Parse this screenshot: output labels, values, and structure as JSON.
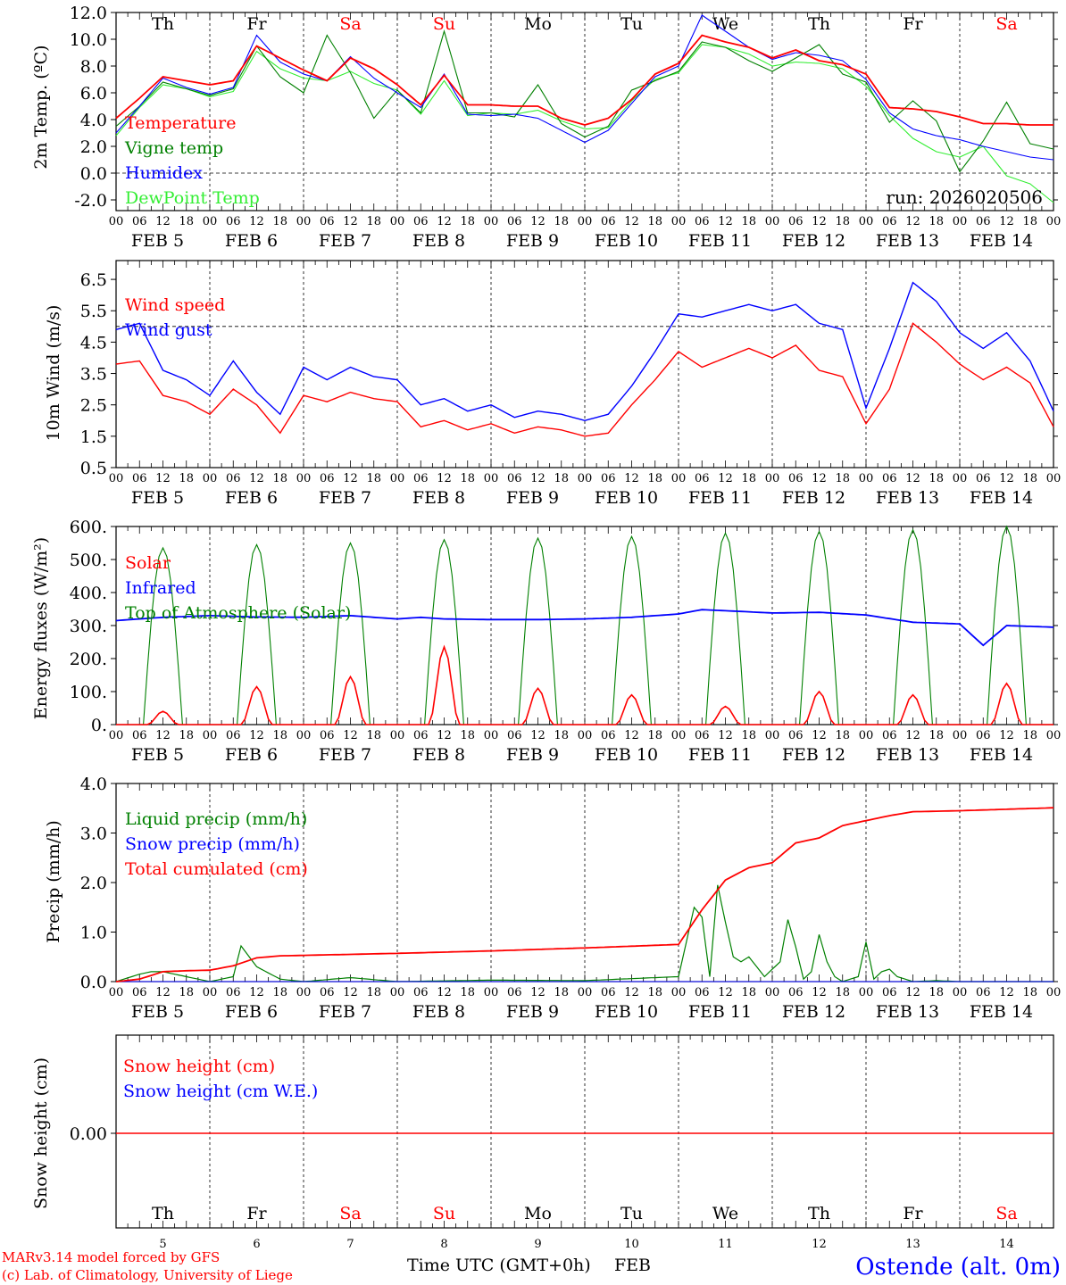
{
  "colors": {
    "red": "#ff0000",
    "green": "#008000",
    "blue": "#0000ff",
    "lightgreen": "#33ee33",
    "black": "#000000"
  },
  "days": {
    "names": [
      "Th",
      "Fr",
      "Sa",
      "Su",
      "Mo",
      "Tu",
      "We",
      "Th",
      "Fr",
      "Sa"
    ],
    "weekend": [
      false,
      false,
      true,
      true,
      false,
      false,
      false,
      false,
      false,
      true
    ],
    "date_labels": [
      "FEB  5",
      "FEB  6",
      "FEB  7",
      "FEB  8",
      "FEB  9",
      "FEB 10",
      "FEB 11",
      "FEB 12",
      "FEB 13",
      "FEB 14"
    ],
    "day_numbers": [
      "5",
      "6",
      "7",
      "8",
      "9",
      "10",
      "11",
      "12",
      "13",
      "14"
    ],
    "hour_ticks": [
      "00",
      "06",
      "12",
      "18"
    ],
    "final_tick": "00"
  },
  "footer": {
    "credit_line1": "MARv3.14 model forced by GFS",
    "credit_line2": "(c) Lab. of Climatology, University of Liege",
    "axis_title": "Time UTC (GMT+0h)",
    "month": "FEB",
    "station": "Ostende (alt. 0m)"
  },
  "chart_data": [
    {
      "type": "line",
      "title": "2m Temp. (ºC)",
      "ylabel": "2m Temp. (ºC)",
      "ylim": [
        -2.8,
        12.0
      ],
      "yticks": [
        -2.0,
        0.0,
        2.0,
        4.0,
        6.0,
        8.0,
        10.0,
        12.0
      ],
      "ytick_labels": [
        "-2.0",
        "0.0",
        "2.0",
        "4.0",
        "6.0",
        "8.0",
        "10.0",
        "12.0"
      ],
      "reference_line": 0.0,
      "run_label": "run: 2026020506",
      "x_hours": [
        0,
        6,
        12,
        18,
        24,
        30,
        36,
        42,
        48,
        54,
        60,
        66,
        72,
        78,
        84,
        90,
        96,
        102,
        108,
        114,
        120,
        126,
        132,
        138,
        144,
        150,
        156,
        162,
        168,
        174,
        180,
        186,
        192,
        198,
        204,
        210,
        216,
        222,
        228,
        234,
        240
      ],
      "series": [
        {
          "name": "Temperature",
          "color": "#ff0000",
          "values": [
            4.1,
            5.6,
            7.2,
            6.9,
            6.6,
            6.9,
            9.5,
            8.6,
            7.7,
            6.9,
            8.6,
            7.8,
            6.6,
            5.1,
            7.3,
            5.1,
            5.1,
            5.0,
            5.0,
            4.1,
            3.6,
            4.1,
            5.5,
            7.4,
            8.2,
            10.3,
            9.8,
            9.4,
            8.6,
            9.2,
            8.4,
            8.1,
            7.4,
            4.9,
            4.8,
            4.6,
            4.2,
            3.7,
            3.7,
            3.6,
            3.6
          ]
        },
        {
          "name": "Vigne temp",
          "color": "#008000",
          "values": [
            3.5,
            5.0,
            6.8,
            6.3,
            5.8,
            6.3,
            9.5,
            7.2,
            6.0,
            10.3,
            7.5,
            4.1,
            6.2,
            4.5,
            10.6,
            4.5,
            4.5,
            4.2,
            6.6,
            3.7,
            2.7,
            3.5,
            6.2,
            6.9,
            7.6,
            9.8,
            9.4,
            8.4,
            7.6,
            8.6,
            9.6,
            7.4,
            6.8,
            3.8,
            5.4,
            3.9,
            0.1,
            2.4,
            5.3,
            2.2,
            1.8
          ]
        },
        {
          "name": "Humidex",
          "color": "#0000ff",
          "values": [
            3.0,
            5.0,
            7.1,
            6.4,
            5.9,
            6.4,
            10.3,
            8.3,
            7.4,
            6.9,
            8.7,
            7.1,
            6.0,
            4.9,
            7.4,
            4.4,
            4.3,
            4.4,
            4.1,
            3.2,
            2.3,
            3.2,
            5.2,
            7.2,
            8.0,
            11.8,
            10.6,
            9.4,
            8.5,
            9.0,
            8.8,
            8.4,
            7.0,
            4.5,
            3.3,
            2.8,
            2.5,
            2.0,
            1.6,
            1.2,
            1.0
          ]
        },
        {
          "name": "DewPoint Temp",
          "color": "#33ee33",
          "values": [
            2.8,
            4.9,
            6.6,
            6.3,
            5.7,
            6.1,
            9.1,
            7.8,
            7.1,
            6.9,
            7.6,
            6.7,
            6.2,
            4.4,
            6.9,
            4.3,
            4.5,
            4.4,
            4.7,
            3.9,
            3.3,
            3.4,
            5.4,
            7.0,
            7.5,
            9.6,
            9.4,
            8.9,
            8.0,
            8.3,
            8.2,
            7.8,
            6.5,
            4.3,
            2.6,
            1.6,
            1.2,
            2.0,
            -0.2,
            -0.8,
            -2.2
          ]
        }
      ]
    },
    {
      "type": "line",
      "title": "10m Wind (m/s)",
      "ylabel": "10m Wind (m/s)",
      "ylim": [
        0.5,
        7.1
      ],
      "yticks": [
        0.5,
        1.5,
        2.5,
        3.5,
        4.5,
        5.5,
        6.5
      ],
      "ytick_labels": [
        "0.5",
        "1.5",
        "2.5",
        "3.5",
        "4.5",
        "5.5",
        "6.5"
      ],
      "reference_line": 5.0,
      "x_hours": [
        0,
        6,
        12,
        18,
        24,
        30,
        36,
        42,
        48,
        54,
        60,
        66,
        72,
        78,
        84,
        90,
        96,
        102,
        108,
        114,
        120,
        126,
        132,
        138,
        144,
        150,
        156,
        162,
        168,
        174,
        180,
        186,
        192,
        198,
        204,
        210,
        216,
        222,
        228,
        234,
        240
      ],
      "series": [
        {
          "name": "Wind speed",
          "color": "#ff0000",
          "values": [
            3.8,
            3.9,
            2.8,
            2.6,
            2.2,
            3.0,
            2.5,
            1.6,
            2.8,
            2.6,
            2.9,
            2.7,
            2.6,
            1.8,
            2.0,
            1.7,
            1.9,
            1.6,
            1.8,
            1.7,
            1.5,
            1.6,
            2.5,
            3.3,
            4.2,
            3.7,
            4.0,
            4.3,
            4.0,
            4.4,
            3.6,
            3.4,
            1.9,
            3.0,
            5.1,
            4.5,
            3.8,
            3.3,
            3.7,
            3.2,
            1.8
          ]
        },
        {
          "name": "Wind gust",
          "color": "#0000ff",
          "values": [
            4.9,
            5.1,
            3.6,
            3.3,
            2.8,
            3.9,
            2.9,
            2.2,
            3.7,
            3.3,
            3.7,
            3.4,
            3.3,
            2.5,
            2.7,
            2.3,
            2.5,
            2.1,
            2.3,
            2.2,
            2.0,
            2.2,
            3.1,
            4.2,
            5.4,
            5.3,
            5.5,
            5.7,
            5.5,
            5.7,
            5.1,
            4.9,
            2.4,
            4.3,
            6.4,
            5.8,
            4.8,
            4.3,
            4.8,
            3.9,
            2.3
          ]
        }
      ]
    },
    {
      "type": "line",
      "title": "Energy fluxes (W/m²)",
      "ylabel": "Energy fluxes (W/m²)",
      "ylim": [
        0,
        600
      ],
      "yticks": [
        0,
        100,
        200,
        300,
        400,
        500,
        600
      ],
      "ytick_labels": [
        "0.",
        "100.",
        "200.",
        "300.",
        "400.",
        "500.",
        "600."
      ],
      "solar_peak": [
        40,
        115,
        145,
        235,
        110,
        90,
        55,
        100,
        90,
        125
      ],
      "toa_peak": [
        535,
        545,
        550,
        560,
        565,
        570,
        580,
        585,
        590,
        600
      ],
      "infrared_hours": [
        0,
        12,
        24,
        36,
        48,
        60,
        72,
        78,
        84,
        96,
        108,
        120,
        132,
        144,
        150,
        156,
        168,
        180,
        192,
        204,
        216,
        222,
        228,
        240
      ],
      "infrared_values": [
        315,
        325,
        330,
        326,
        325,
        330,
        320,
        325,
        320,
        318,
        318,
        320,
        325,
        335,
        348,
        345,
        338,
        340,
        332,
        310,
        305,
        240,
        300,
        295
      ],
      "series": [
        {
          "name": "Solar",
          "color": "#ff0000"
        },
        {
          "name": "Infrared",
          "color": "#0000ff"
        },
        {
          "name": "Top of Atmosphere (Solar)",
          "color": "#008000"
        }
      ]
    },
    {
      "type": "line",
      "title": "Precip (mm/h)",
      "ylabel": "Precip (mm/h)",
      "ylim": [
        0,
        4.0
      ],
      "yticks": [
        0.0,
        1.0,
        2.0,
        3.0,
        4.0
      ],
      "ytick_labels": [
        "0.0",
        "1.0",
        "2.0",
        "3.0",
        "4.0"
      ],
      "liquid_hours": [
        0,
        6,
        9,
        12,
        18,
        24,
        30,
        32,
        36,
        42,
        48,
        60,
        72,
        96,
        120,
        144,
        148,
        150,
        152,
        154,
        156,
        158,
        160,
        162,
        166,
        170,
        172,
        174,
        176,
        178,
        180,
        182,
        184,
        186,
        190,
        192,
        194,
        196,
        198,
        200,
        204,
        210,
        216,
        240
      ],
      "liquid_values": [
        0.0,
        0.15,
        0.2,
        0.2,
        0.1,
        0.0,
        0.1,
        0.72,
        0.3,
        0.05,
        0.0,
        0.08,
        0.0,
        0.03,
        0.02,
        0.1,
        1.5,
        1.3,
        0.1,
        1.95,
        1.2,
        0.5,
        0.4,
        0.5,
        0.1,
        0.4,
        1.25,
        0.7,
        0.05,
        0.2,
        0.95,
        0.4,
        0.1,
        0.0,
        0.1,
        0.8,
        0.05,
        0.2,
        0.25,
        0.1,
        0.0,
        0.02,
        0.0,
        0.0
      ],
      "cumulated_hours": [
        0,
        6,
        12,
        18,
        24,
        30,
        36,
        42,
        48,
        72,
        96,
        120,
        144,
        150,
        156,
        162,
        168,
        174,
        180,
        186,
        192,
        198,
        204,
        216,
        228,
        240
      ],
      "cumulated_values": [
        0.0,
        0.05,
        0.2,
        0.22,
        0.23,
        0.32,
        0.48,
        0.52,
        0.53,
        0.57,
        0.62,
        0.68,
        0.75,
        1.45,
        2.05,
        2.3,
        2.4,
        2.8,
        2.9,
        3.15,
        3.25,
        3.35,
        3.43,
        3.45,
        3.48,
        3.51
      ],
      "series": [
        {
          "name": "Liquid precip (mm/h)",
          "color": "#008000"
        },
        {
          "name": "Snow precip (mm/h)",
          "color": "#0000ff"
        },
        {
          "name": "Total cumulated (cm)",
          "color": "#ff0000"
        }
      ]
    },
    {
      "type": "line",
      "title": "Snow height (cm)",
      "ylabel": "Snow height (cm)",
      "ytick_labels": [
        "0.00"
      ],
      "values_constant": 0.0,
      "series": [
        {
          "name": "Snow height (cm)",
          "color": "#ff0000"
        },
        {
          "name": "Snow height (cm W.E.)",
          "color": "#0000ff"
        }
      ]
    }
  ]
}
